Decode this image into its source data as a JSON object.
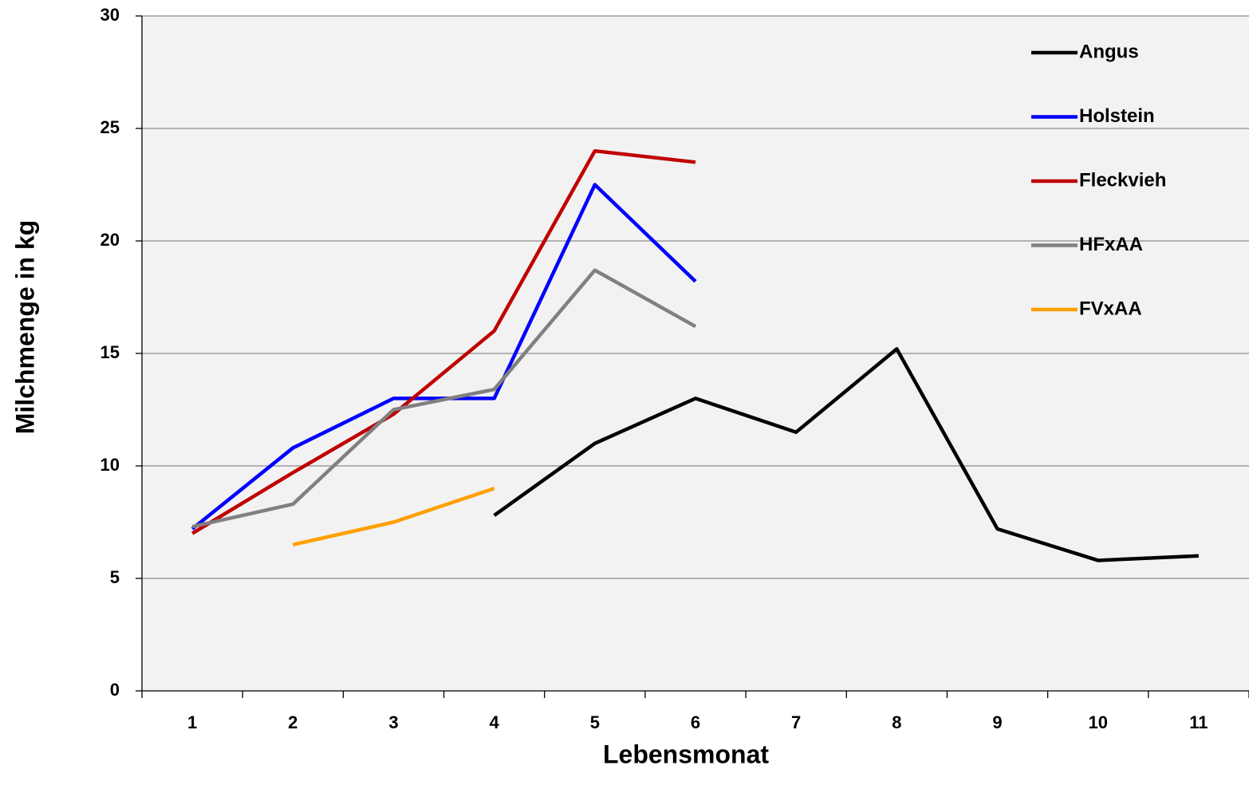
{
  "chart_data": {
    "type": "line",
    "x_label": "Lebensmonat",
    "y_label": "Milchmenge in kg",
    "categories": [
      "1",
      "2",
      "3",
      "4",
      "5",
      "6",
      "7",
      "8",
      "9",
      "10",
      "11"
    ],
    "series": [
      {
        "name": "Angus",
        "color": "#000000",
        "values": [
          null,
          null,
          null,
          7.8,
          11.0,
          13.0,
          11.5,
          15.2,
          7.2,
          5.8,
          6.0
        ]
      },
      {
        "name": "Holstein",
        "color": "#0000ff",
        "values": [
          7.2,
          10.8,
          13.0,
          13.0,
          22.5,
          18.2,
          null,
          null,
          null,
          null,
          null
        ]
      },
      {
        "name": "Fleckvieh",
        "color": "#c00000",
        "values": [
          7.0,
          9.7,
          12.3,
          16.0,
          24.0,
          23.5,
          null,
          null,
          null,
          null,
          null
        ]
      },
      {
        "name": "HFxAA",
        "color": "#808080",
        "values": [
          7.3,
          8.3,
          12.5,
          13.4,
          18.7,
          16.2,
          null,
          null,
          null,
          null,
          null
        ]
      },
      {
        "name": "FVxAA",
        "color": "#ffa000",
        "values": [
          null,
          6.5,
          7.5,
          9.0,
          null,
          null,
          null,
          null,
          null,
          null,
          null
        ]
      }
    ],
    "ylim": [
      0,
      30
    ],
    "yticks": [
      0,
      5,
      10,
      15,
      20,
      25,
      30
    ],
    "grid": true,
    "legend": "top-right"
  }
}
